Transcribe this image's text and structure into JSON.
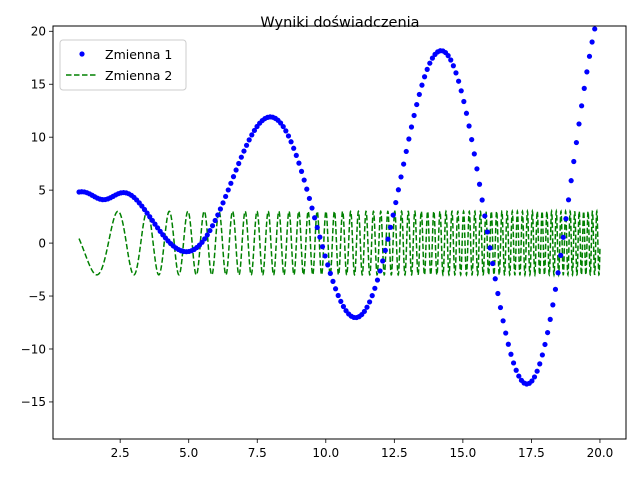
{
  "chart_data": {
    "type": "line",
    "title": "Wyniki doświadczenia",
    "xlabel": "",
    "ylabel": "",
    "xlim": [
      0.05,
      20.95
    ],
    "ylim": [
      -18.5,
      20.5
    ],
    "xticks": [
      2.5,
      5.0,
      7.5,
      10.0,
      12.5,
      15.0,
      17.5,
      20.0
    ],
    "xtick_labels": [
      "2.5",
      "5.0",
      "7.5",
      "10.0",
      "12.5",
      "15.0",
      "17.5",
      "20.0"
    ],
    "yticks": [
      -15,
      -10,
      -5,
      0,
      5,
      10,
      15,
      20
    ],
    "ytick_labels": [
      "−15",
      "−10",
      "−5",
      "0",
      "5",
      "10",
      "15",
      "20"
    ],
    "grid": false,
    "legend_position": "top-left",
    "series": [
      {
        "name": "Zmienna 1",
        "style": "markers",
        "color": "#0000ff",
        "x_range": [
          1,
          20
        ],
        "n_points": 200,
        "key_points": [
          {
            "x": 1.0,
            "y": 4.8
          },
          {
            "x": 2.5,
            "y": 3.5
          },
          {
            "x": 5.0,
            "y": -4.0
          },
          {
            "x": 8.0,
            "y": 8.4
          },
          {
            "x": 11.1,
            "y": -10.7
          },
          {
            "x": 14.2,
            "y": 14.4
          },
          {
            "x": 17.3,
            "y": -17.1
          },
          {
            "x": 20.0,
            "y": 18.4
          }
        ]
      },
      {
        "name": "Zmienna 2",
        "style": "dashed",
        "color": "#008000",
        "x_range": [
          1,
          20
        ],
        "amplitude": 3,
        "approx_zero_crossings": [
          1.1,
          1.4,
          2.45,
          3.05,
          3.45,
          4.0
        ]
      }
    ]
  }
}
